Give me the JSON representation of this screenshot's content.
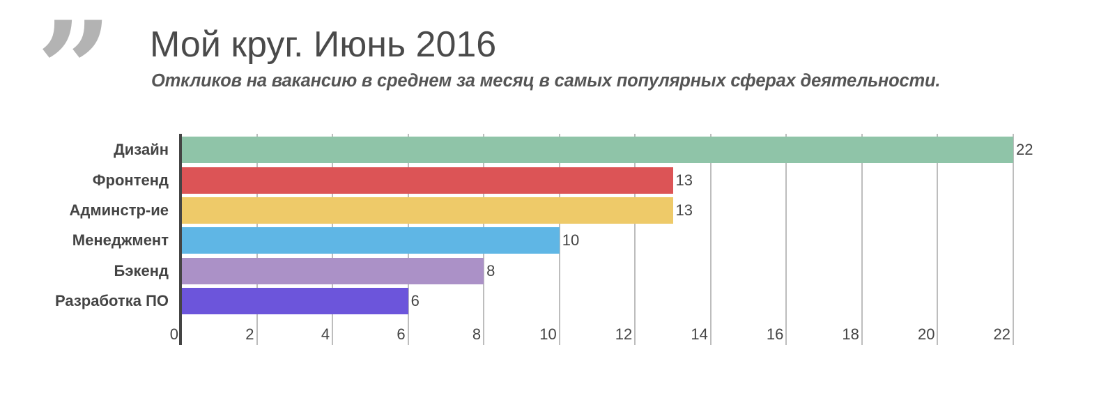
{
  "header": {
    "quote_icon": "quote-mark-icon",
    "title": "Мой круг. Июнь 2016",
    "subtitle": "Откликов на вакансию в среднем за месяц в самых популярных сферах деятельности."
  },
  "chart_data": {
    "type": "bar",
    "orientation": "horizontal",
    "title": "Мой круг. Июнь 2016",
    "subtitle": "Откликов на вакансию в среднем за месяц в самых популярных сферах деятельности.",
    "xlabel": "",
    "ylabel": "",
    "categories": [
      "Дизайн",
      "Фронтенд",
      "Админстр-ие",
      "Менеджмент",
      "Бэкенд",
      "Разработка ПО"
    ],
    "values": [
      22,
      13,
      13,
      10,
      8,
      6
    ],
    "colors": [
      "#8fc4a8",
      "#dc5456",
      "#eeca69",
      "#5fb6e5",
      "#ab91c7",
      "#6c55db"
    ],
    "xlim": [
      0,
      22
    ],
    "xticks": [
      "0",
      "2",
      "4",
      "6",
      "8",
      "10",
      "12",
      "14",
      "16",
      "18",
      "20",
      "22"
    ],
    "grid": true,
    "data_labels": true,
    "legend": "none"
  }
}
